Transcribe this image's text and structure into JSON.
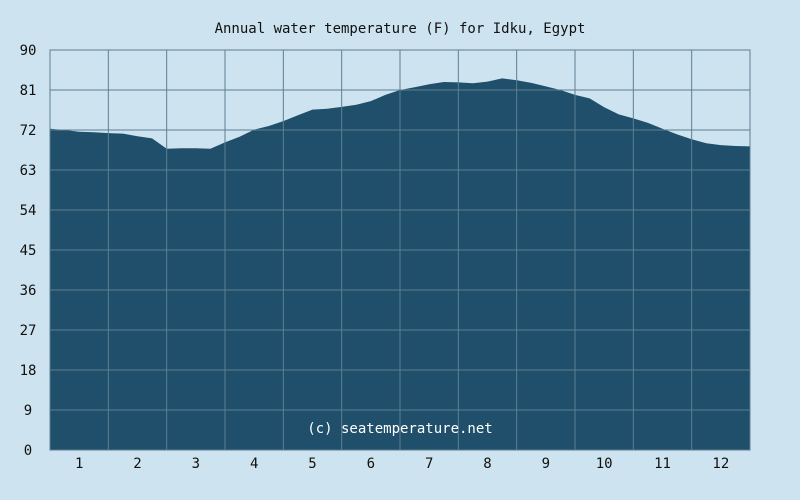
{
  "chart_data": {
    "type": "area",
    "title": "Annual water temperature (F) for Idku, Egypt",
    "credit": "(c) seatemperature.net",
    "xlabel": "",
    "ylabel": "",
    "x_ticks": [
      "1",
      "2",
      "3",
      "4",
      "5",
      "6",
      "7",
      "8",
      "9",
      "10",
      "11",
      "12"
    ],
    "y_ticks": [
      "0",
      "9",
      "18",
      "27",
      "36",
      "45",
      "54",
      "63",
      "72",
      "81",
      "90"
    ],
    "ylim": [
      0,
      90
    ],
    "xlim": [
      1,
      13
    ],
    "grid": true,
    "colors": {
      "fill": "#1f4f6a",
      "plot_bg": "#cde3ef",
      "grid": "#5d7f93",
      "credit": "#ffffff"
    },
    "series": [
      {
        "x": [
          1.0,
          1.25,
          1.5,
          1.75,
          2.0,
          2.25,
          2.5,
          2.75,
          3.0,
          3.25,
          3.5,
          3.75,
          4.0,
          4.25,
          4.5,
          4.75,
          5.0,
          5.25,
          5.5,
          5.75,
          6.0,
          6.25,
          6.5,
          6.75,
          7.0,
          7.25,
          7.5,
          7.75,
          8.0,
          8.25,
          8.5,
          8.75,
          9.0,
          9.25,
          9.5,
          9.75,
          10.0,
          10.25,
          10.5,
          10.75,
          11.0,
          11.25,
          11.5,
          11.75,
          12.0,
          12.25,
          12.5,
          12.75,
          13.0
        ],
        "values": [
          72.3,
          72.0,
          71.6,
          71.5,
          71.3,
          71.2,
          70.6,
          70.1,
          67.8,
          67.9,
          67.9,
          67.8,
          69.2,
          70.5,
          72.1,
          72.9,
          74.0,
          75.3,
          76.6,
          76.8,
          77.2,
          77.7,
          78.5,
          79.9,
          81.0,
          81.6,
          82.3,
          82.8,
          82.7,
          82.5,
          82.9,
          83.6,
          83.2,
          82.6,
          81.8,
          81.0,
          79.9,
          79.1,
          77.1,
          75.5,
          74.6,
          73.6,
          72.3,
          71.0,
          69.9,
          69.0,
          68.6,
          68.4,
          68.3
        ]
      }
    ]
  }
}
